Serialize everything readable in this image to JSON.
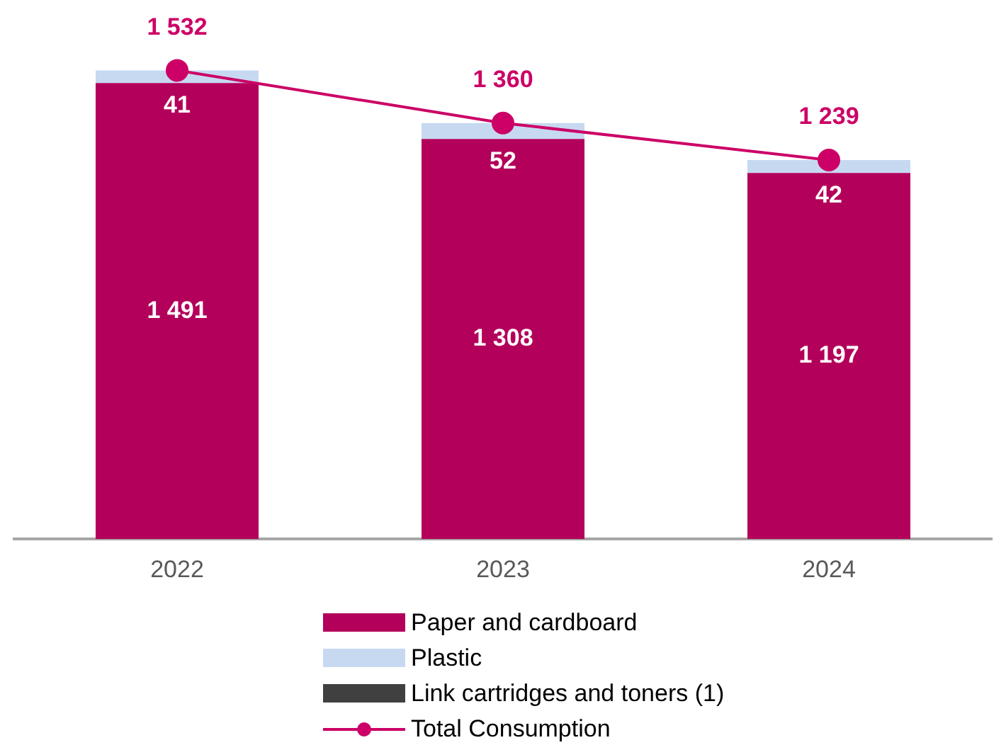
{
  "chart_data": {
    "type": "bar",
    "stacked": true,
    "categories": [
      "2022",
      "2023",
      "2024"
    ],
    "legend": "bottom",
    "marker": "circle",
    "grid": false,
    "series": [
      {
        "name": "Paper and cardboard",
        "color": "#b3005a",
        "values": [
          1491,
          1308,
          1197
        ],
        "value_labels": [
          "1 491",
          "1 308",
          "1 197"
        ]
      },
      {
        "name": "Plastic",
        "color": "#c6d9f1",
        "values": [
          41,
          52,
          42
        ],
        "value_labels": [
          "41",
          "52",
          "42"
        ]
      },
      {
        "name": "Link cartridges and toners (1)",
        "color": "#404040",
        "values": [
          0,
          0,
          0
        ],
        "value_labels": [
          null,
          null,
          null
        ]
      },
      {
        "name": "Total Consumption",
        "type": "line",
        "color": "#cc0066",
        "values": [
          1532,
          1360,
          1239
        ],
        "value_labels": [
          "1 532",
          "1 360",
          "1 239"
        ]
      }
    ]
  }
}
